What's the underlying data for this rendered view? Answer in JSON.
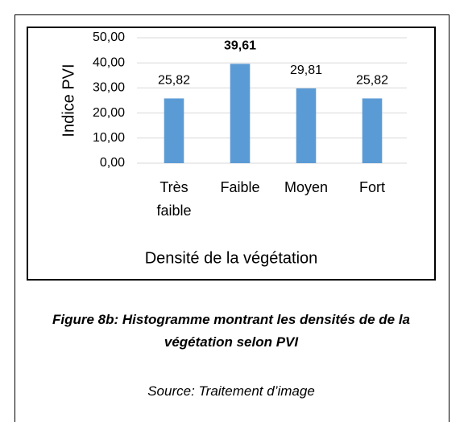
{
  "chart_data": {
    "type": "bar",
    "categories": [
      "Très faible",
      "Faible",
      "Moyen",
      "Fort"
    ],
    "values": [
      25.82,
      39.61,
      29.81,
      25.82
    ],
    "value_labels": [
      "25,82",
      "39,61",
      "29,81",
      "25,82"
    ],
    "bold_value_label": 1,
    "color": "#5b9bd5",
    "ylim": [
      0,
      50
    ],
    "yticks": [
      {
        "value": 0,
        "label": "0,00"
      },
      {
        "value": 10,
        "label": "10,00"
      },
      {
        "value": 20,
        "label": "20,00"
      },
      {
        "value": 30,
        "label": "30,00"
      },
      {
        "value": 40,
        "label": "40,00"
      },
      {
        "value": 50,
        "label": "50,00"
      }
    ],
    "grid": true,
    "ylabel": "Indice PVI",
    "xlabel": "Densité de la végétation"
  },
  "caption": "Figure 8b: Histogramme montrant les densités de de la végétation selon PVI",
  "source": "Source: Traitement d’image"
}
